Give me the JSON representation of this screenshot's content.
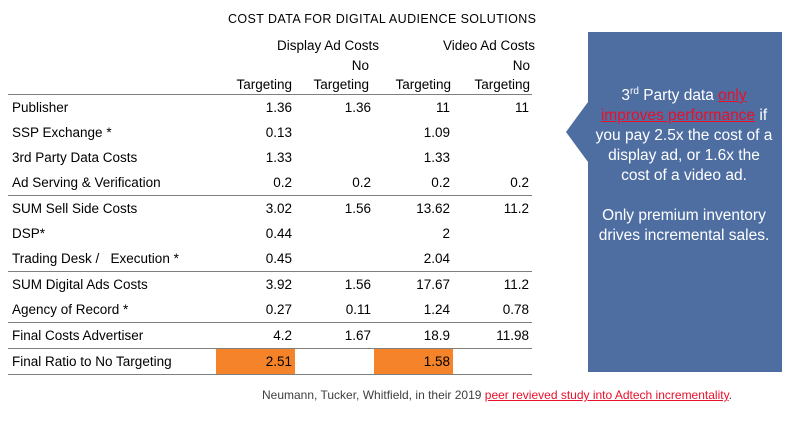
{
  "title": "COST DATA FOR DIGITAL AUDIENCE SOLUTIONS",
  "groups": {
    "display": "Display Ad Costs",
    "video": "Video Ad Costs"
  },
  "headers": {
    "targeting": "Targeting",
    "no": "No",
    "no_targeting": "Targeting"
  },
  "rows": [
    {
      "label": "Publisher",
      "d_t": "1.36",
      "d_n": "1.36",
      "v_t": "11",
      "v_n": "11"
    },
    {
      "label": "SSP Exchange *",
      "d_t": "0.13",
      "d_n": "",
      "v_t": "1.09",
      "v_n": ""
    },
    {
      "label": "3rd Party Data Costs",
      "d_t": "1.33",
      "d_n": "",
      "v_t": "1.33",
      "v_n": ""
    },
    {
      "label": "Ad Serving & Verification",
      "d_t": "0.2",
      "d_n": "0.2",
      "v_t": "0.2",
      "v_n": "0.2"
    },
    {
      "label": "SUM Sell Side Costs",
      "d_t": "3.02",
      "d_n": "1.56",
      "v_t": "13.62",
      "v_n": "11.2"
    },
    {
      "label": "DSP*",
      "d_t": "0.44",
      "d_n": "",
      "v_t": "2",
      "v_n": ""
    },
    {
      "label": "Trading Desk /   Execution *",
      "d_t": "0.45",
      "d_n": "",
      "v_t": "2.04",
      "v_n": ""
    },
    {
      "label": "SUM Digital Ads Costs",
      "d_t": "3.92",
      "d_n": "1.56",
      "v_t": "17.67",
      "v_n": "11.2"
    },
    {
      "label": "Agency of Record *",
      "d_t": "0.27",
      "d_n": "0.11",
      "v_t": "1.24",
      "v_n": "0.78"
    },
    {
      "label": "Final Costs Advertiser",
      "d_t": "4.2",
      "d_n": "1.67",
      "v_t": "18.9",
      "v_n": "11.98"
    },
    {
      "label": "Final Ratio to No Targeting",
      "d_t": "2.51",
      "d_n": "",
      "v_t": "1.58",
      "v_n": ""
    }
  ],
  "highlight_color": "#f5832a",
  "callout": {
    "bg_color": "#4e6ea2",
    "p1_num": "3",
    "p1_sup": "rd",
    "p1_a": " Party data ",
    "p1_red": "only improves performance",
    "p1_b": " if you pay 2.5x the cost of a display ad, or 1.6x the cost of a video ad.",
    "p2": "Only premium inventory drives incremental sales."
  },
  "footer": {
    "text": "Neumann, Tucker, Whitfield, in their 2019 ",
    "link": "peer revieved study into Adtech incrementality",
    "end": "."
  }
}
